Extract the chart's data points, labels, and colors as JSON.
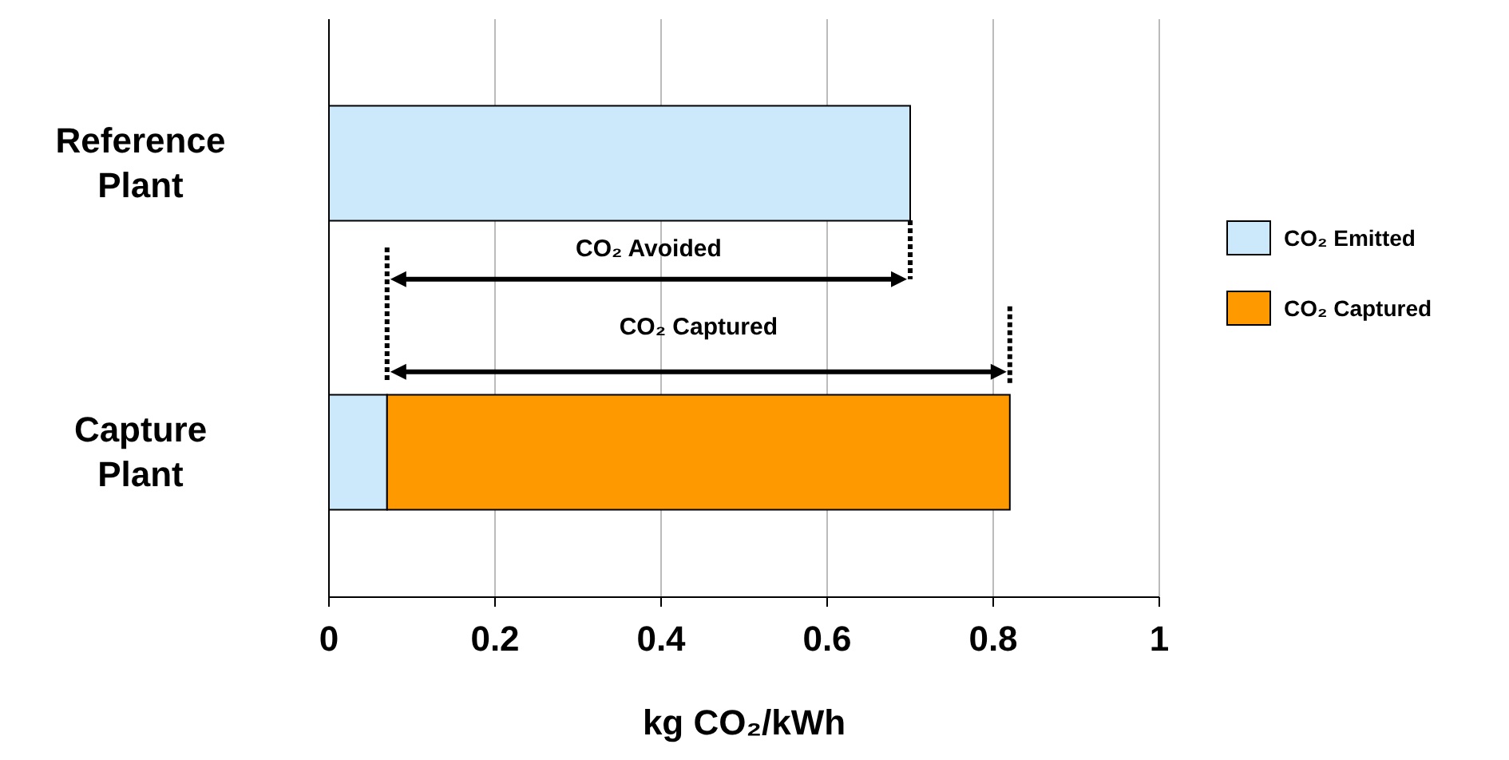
{
  "chart_data": {
    "type": "bar",
    "orientation": "horizontal",
    "stacked": true,
    "categories": [
      "Reference Plant",
      "Capture Plant"
    ],
    "series": [
      {
        "name": "CO₂ Emitted",
        "color": "#cce9fb",
        "values": [
          0.7,
          0.07
        ]
      },
      {
        "name": "CO₂ Captured",
        "color": "#ff9900",
        "values": [
          null,
          0.75
        ]
      }
    ],
    "xlabel": "kg CO₂/kWh",
    "xlim": [
      0,
      1
    ],
    "xticks": [
      0,
      0.2,
      0.4,
      0.6,
      0.8,
      1
    ],
    "grid": "x",
    "legend": "right",
    "annotations": [
      "CO₂ Avoided",
      "CO₂ Captured"
    ]
  }
}
